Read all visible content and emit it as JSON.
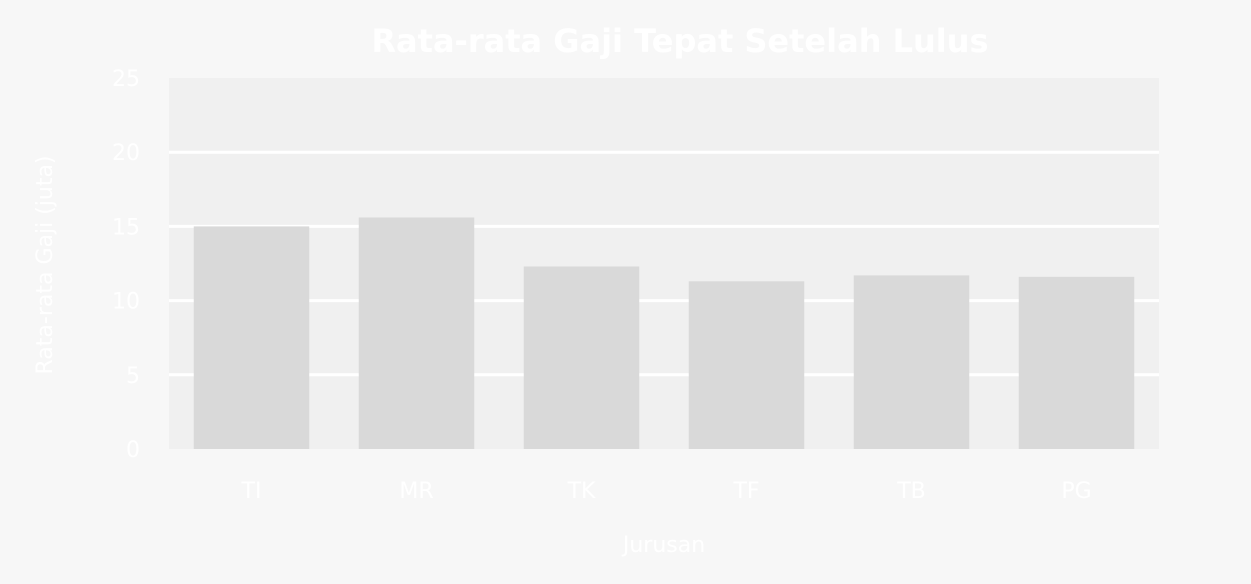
{
  "chart_data": {
    "type": "bar",
    "title": "Rata-rata Gaji Tepat Setelah Lulus",
    "xlabel": "Jurusan",
    "ylabel": "Rata-rata Gaji (juta)",
    "categories": [
      "TI",
      "MR",
      "TK",
      "TF",
      "TB",
      "PG"
    ],
    "values": [
      15.0,
      15.6,
      12.3,
      11.3,
      11.7,
      11.6
    ],
    "ylim": [
      0,
      25
    ],
    "yticks": [
      0,
      5,
      10,
      15,
      20,
      25
    ],
    "grid": true,
    "colors": {
      "background": "#f7f7f7",
      "plot_background": "#f0f0f0",
      "bar": "#d9d9d9",
      "gridline": "#ffffff",
      "text": "#ffffff"
    }
  }
}
